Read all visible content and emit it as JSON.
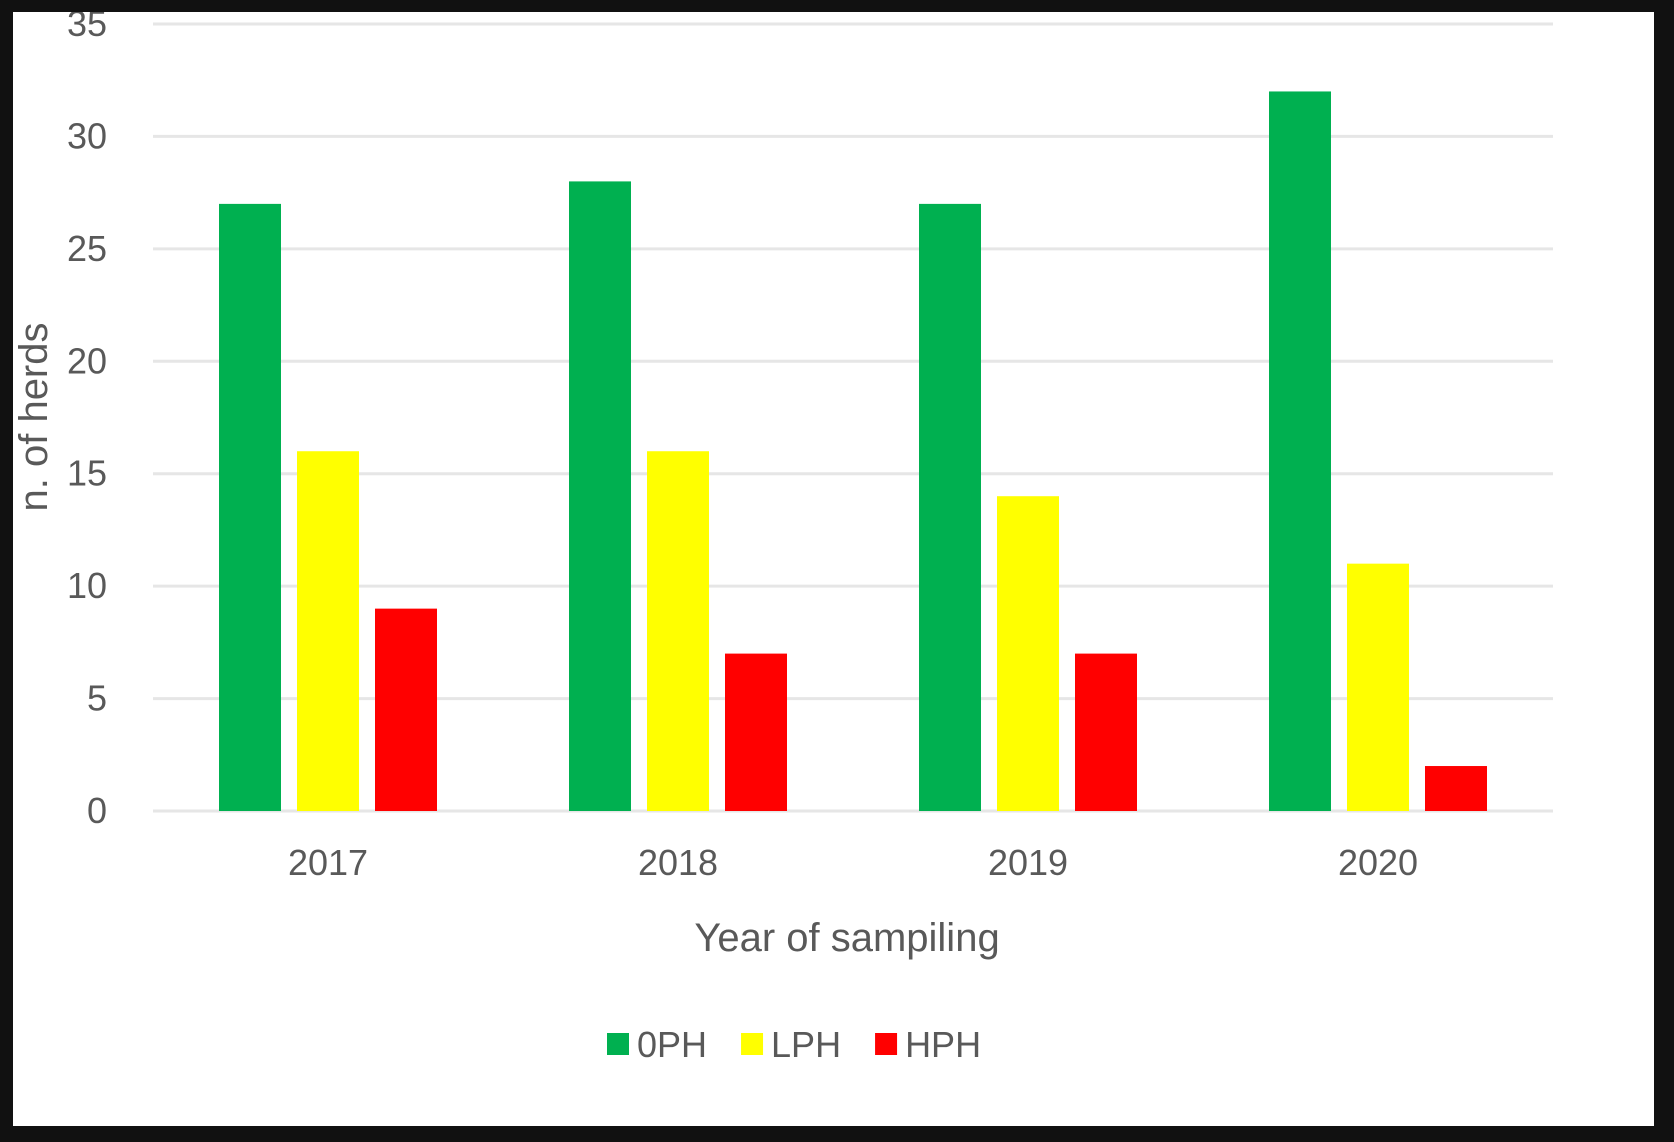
{
  "chart_data": {
    "type": "bar",
    "categories": [
      "2017",
      "2018",
      "2019",
      "2020"
    ],
    "series": [
      {
        "name": "0PH",
        "values": [
          27,
          28,
          27,
          32
        ],
        "color": "#00b050"
      },
      {
        "name": "LPH",
        "values": [
          16,
          16,
          14,
          11
        ],
        "color": "#ffff00"
      },
      {
        "name": "HPH",
        "values": [
          9,
          7,
          7,
          2
        ],
        "color": "#ff0000"
      }
    ],
    "title": "",
    "xlabel": "Year of sampiling",
    "ylabel": "n. of herds",
    "ylim": [
      0,
      35
    ],
    "yticks": [
      "0",
      "5",
      "10",
      "15",
      "20",
      "25",
      "30",
      "35"
    ],
    "grid": true,
    "legend": "bottom-center",
    "colors": {
      "gridline": "#e6e6e6",
      "text": "#595959",
      "background": "#ffffff",
      "frame": "#111111"
    }
  }
}
